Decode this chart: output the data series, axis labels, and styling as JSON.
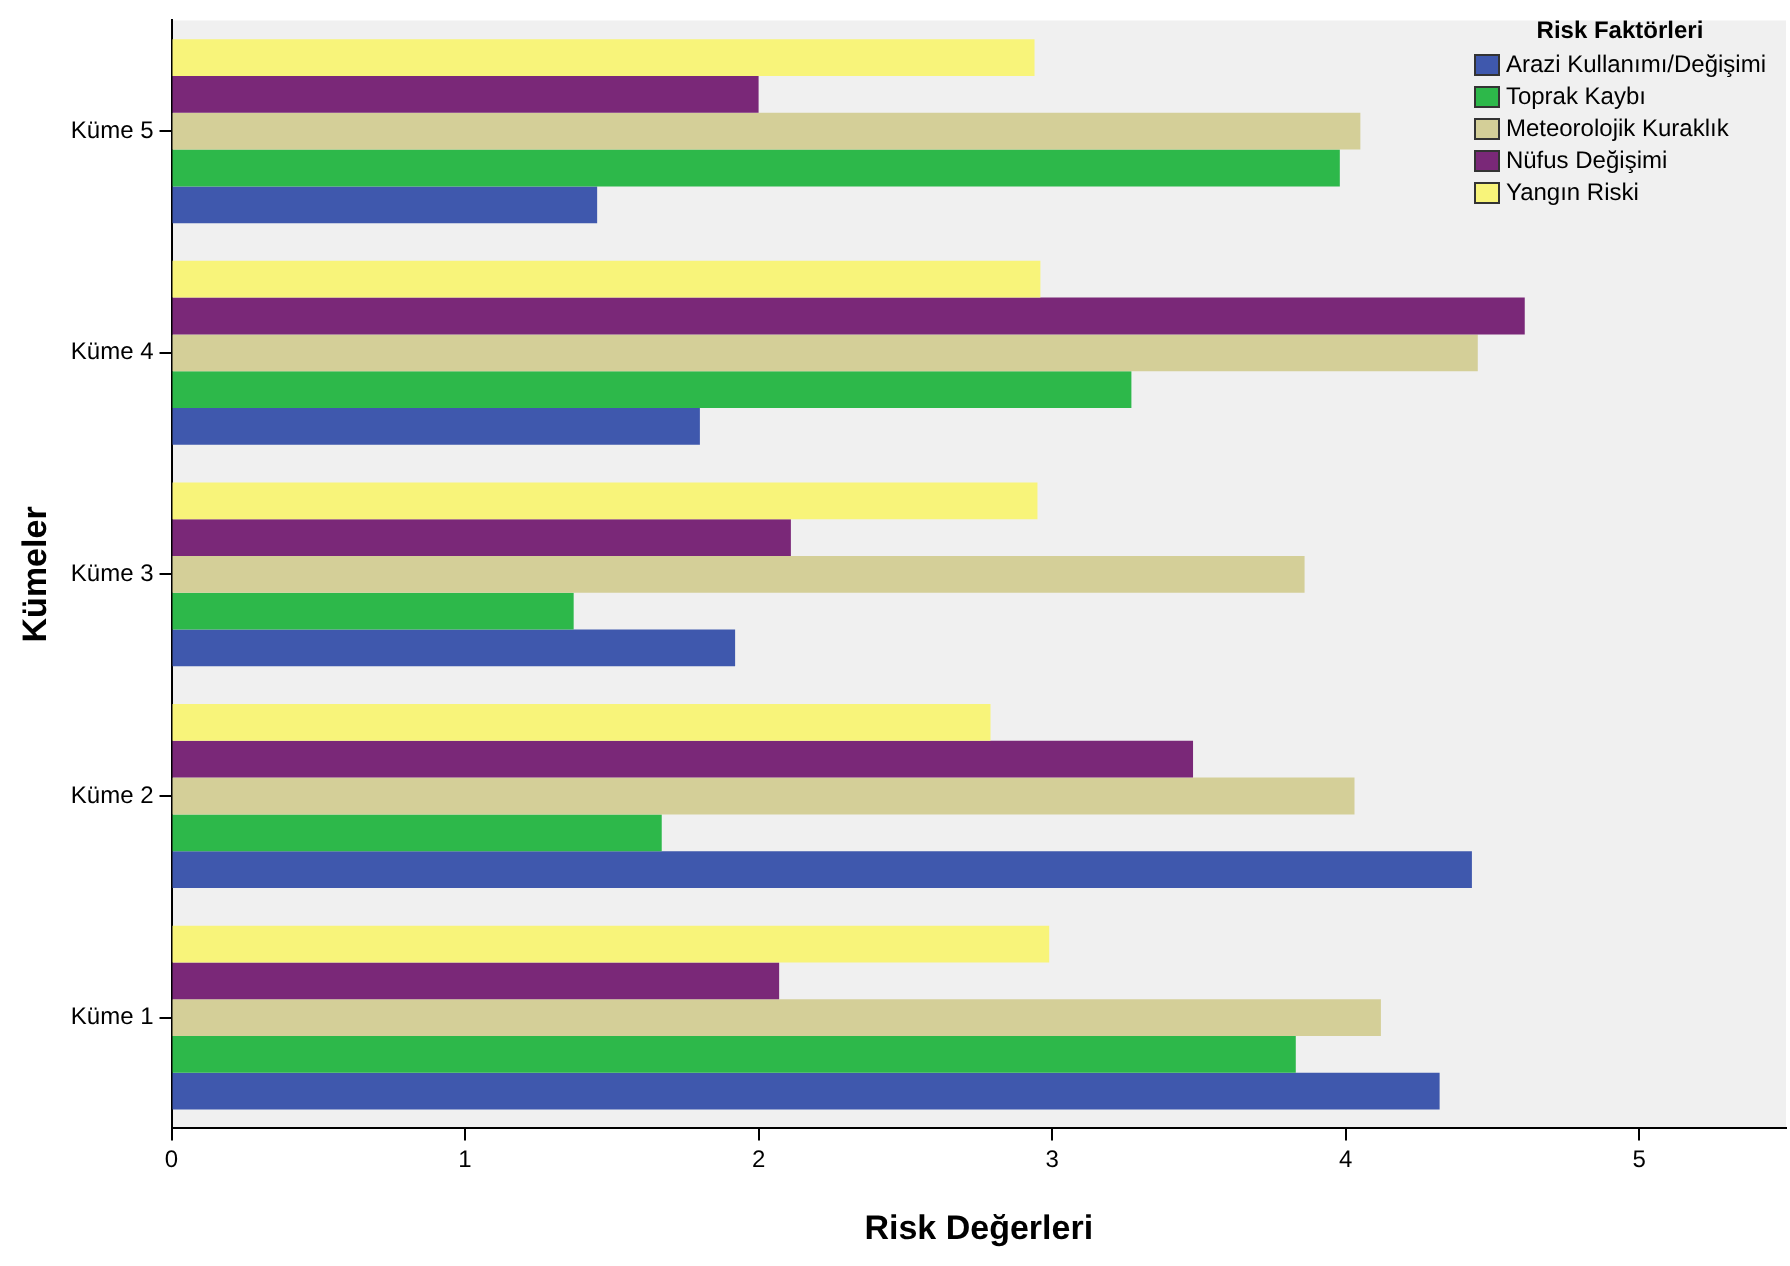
{
  "chart_data": {
    "type": "bar",
    "orientation": "horizontal",
    "xlabel": "Risk Değerleri",
    "ylabel": "Kümeler",
    "legend_title": "Risk Faktörleri",
    "categories": [
      "Küme 5",
      "Küme 4",
      "Küme 3",
      "Küme 2",
      "Küme 1"
    ],
    "series": [
      {
        "name": "Arazi Kullanımı/Değişimi",
        "color": "#3f58ad",
        "values": [
          1.45,
          1.8,
          1.92,
          4.43,
          4.32
        ]
      },
      {
        "name": "Toprak Kaybı",
        "color": "#2db84a",
        "values": [
          3.98,
          3.27,
          1.37,
          1.67,
          3.83
        ]
      },
      {
        "name": "Meteorolojik Kuraklık",
        "color": "#d4cf98",
        "values": [
          4.05,
          4.45,
          3.86,
          4.03,
          4.12
        ]
      },
      {
        "name": "Nüfus Değişimi",
        "color": "#7a2878",
        "values": [
          2.0,
          4.61,
          2.11,
          3.48,
          2.07
        ]
      },
      {
        "name": "Yangın Riski",
        "color": "#f8f47a",
        "values": [
          2.94,
          2.96,
          2.95,
          2.79,
          2.99
        ]
      }
    ],
    "xlim": [
      0,
      5.5
    ],
    "xticks": [
      0,
      1,
      2,
      3,
      4,
      5
    ],
    "grid": false,
    "legend": "top right"
  }
}
